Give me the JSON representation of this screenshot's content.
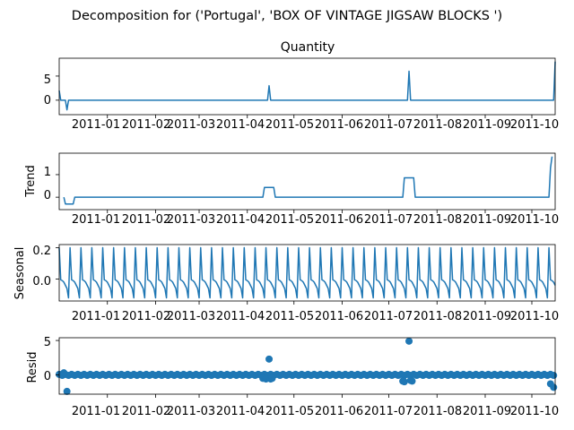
{
  "figure": {
    "suptitle": "Decomposition for ('Portugal', 'BOX OF VINTAGE JIGSAW BLOCKS ')"
  },
  "colors": {
    "line": "#1f77b4",
    "marker": "#1f77b4",
    "axes": "#000000",
    "zero_line": "#000000"
  },
  "x_ticks": [
    "2011-01",
    "2011-02",
    "2011-03",
    "2011-04",
    "2011-05",
    "2011-06",
    "2011-07",
    "2011-08",
    "2011-09",
    "2011-10"
  ],
  "chart_data": [
    {
      "type": "line",
      "title": "Quantity",
      "ylabel": "",
      "xlim": [
        "2010-12-01",
        "2011-10-16"
      ],
      "ylim": [
        -3.0,
        8.7
      ],
      "yticks": [
        "0",
        "5"
      ],
      "x": [
        "2010-12-01",
        "2010-12-02",
        "2010-12-03",
        "2010-12-05",
        "2010-12-06",
        "2010-12-07",
        "2010-12-08",
        "2011-04-14",
        "2011-04-15",
        "2011-04-16",
        "2011-07-13",
        "2011-07-14",
        "2011-07-15",
        "2011-10-15",
        "2011-10-16"
      ],
      "values": [
        2,
        0,
        0,
        0,
        -2,
        0,
        0,
        0,
        3,
        0,
        0,
        6,
        0,
        0,
        8
      ]
    },
    {
      "type": "line",
      "title": "",
      "ylabel": "Trend",
      "xlim": [
        "2010-12-01",
        "2011-10-16"
      ],
      "ylim": [
        -0.55,
        1.95
      ],
      "yticks": [
        "0",
        "1"
      ],
      "x": [
        "2010-12-04",
        "2010-12-05",
        "2010-12-10",
        "2010-12-11",
        "2011-04-11",
        "2011-04-12",
        "2011-04-18",
        "2011-04-19",
        "2011-07-10",
        "2011-07-11",
        "2011-07-17",
        "2011-07-18",
        "2011-10-12",
        "2011-10-13",
        "2011-10-14"
      ],
      "values": [
        0,
        -0.3,
        -0.3,
        0,
        0,
        0.43,
        0.43,
        0,
        0,
        0.86,
        0.86,
        0,
        0,
        1.3,
        1.8
      ]
    },
    {
      "type": "line",
      "title": "",
      "ylabel": "Seasonal",
      "xlim": [
        "2010-12-01",
        "2011-10-16"
      ],
      "ylim": [
        -0.14,
        0.22
      ],
      "yticks": [
        "0.0",
        "0.2"
      ],
      "period_days": 7,
      "first_date": "2010-12-01",
      "last_date": "2011-10-16",
      "pattern": [
        0.2,
        -0.005,
        -0.01,
        -0.02,
        -0.04,
        -0.06,
        -0.12
      ]
    },
    {
      "type": "scatter",
      "title": "",
      "ylabel": "Resid",
      "xlim": [
        "2010-12-01",
        "2011-10-16"
      ],
      "ylim": [
        -2.8,
        5.4
      ],
      "yticks": [
        "0",
        "5"
      ],
      "points": [
        {
          "x": "2010-12-04",
          "y": 0.3
        },
        {
          "x": "2010-12-06",
          "y": -2.4
        },
        {
          "x": "2011-04-11",
          "y": -0.5
        },
        {
          "x": "2011-04-13",
          "y": -0.6
        },
        {
          "x": "2011-04-15",
          "y": 2.3
        },
        {
          "x": "2011-04-16",
          "y": -0.6
        },
        {
          "x": "2011-04-17",
          "y": -0.5
        },
        {
          "x": "2011-07-10",
          "y": -0.9
        },
        {
          "x": "2011-07-11",
          "y": -1.0
        },
        {
          "x": "2011-07-14",
          "y": 4.9
        },
        {
          "x": "2011-07-15",
          "y": -0.8
        },
        {
          "x": "2011-07-16",
          "y": -0.9
        },
        {
          "x": "2011-10-13",
          "y": -1.3
        },
        {
          "x": "2011-10-15",
          "y": -1.8
        }
      ],
      "baseline_x": [
        "2010-12-01",
        "2011-10-16"
      ],
      "baseline_offset": 0.15,
      "baseline_step_days": 2
    }
  ]
}
